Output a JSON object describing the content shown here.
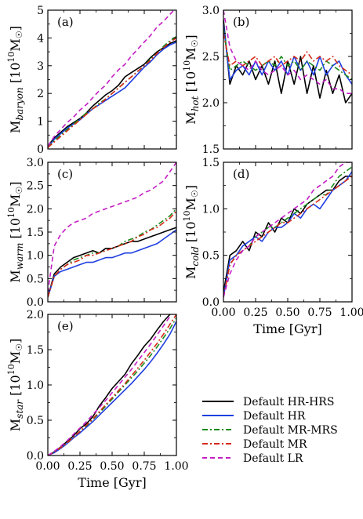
{
  "colors": {
    "Default HR-HRS": "#000000",
    "Default HR": "#1f3fe0",
    "Default MR-MRS": "#1a8a1a",
    "Default MR": "#d62a1a",
    "Default LR": "#c41fc4"
  },
  "legend": {
    "placement": "lower-right",
    "entries": [
      {
        "name": "Default HR-HRS",
        "dash": "solid"
      },
      {
        "name": "Default HR",
        "dash": "solid"
      },
      {
        "name": "Default MR-MRS",
        "dash": "dashdot"
      },
      {
        "name": "Default MR",
        "dash": "dashdot"
      },
      {
        "name": "Default LR",
        "dash": "dashed"
      }
    ]
  },
  "chart_data": [
    {
      "type": "line",
      "panel_label": "(a)",
      "ylabel_main": "M",
      "ylabel_sub": "baryon",
      "ylabel_unit": " [10",
      "ylabel_exp": "10",
      "ylabel_tail": "M",
      "ylabel_sun": "☉",
      "ylabel_close": "]",
      "xlabel": "",
      "xlim": [
        0,
        1
      ],
      "ylim": [
        0,
        5
      ],
      "xticks": [],
      "yticks": [
        "0",
        "1",
        "2",
        "3",
        "4",
        "5"
      ],
      "x": [
        0,
        0.05,
        0.1,
        0.15,
        0.2,
        0.25,
        0.3,
        0.35,
        0.4,
        0.45,
        0.5,
        0.55,
        0.6,
        0.65,
        0.7,
        0.75,
        0.8,
        0.85,
        0.9,
        0.95,
        1.0
      ],
      "series": [
        {
          "name": "Default HR-HRS",
          "values": [
            0.1,
            0.4,
            0.6,
            0.8,
            0.95,
            1.1,
            1.3,
            1.55,
            1.75,
            1.95,
            2.1,
            2.3,
            2.6,
            2.75,
            2.9,
            3.05,
            3.3,
            3.5,
            3.65,
            3.8,
            3.9
          ]
        },
        {
          "name": "Default HR",
          "values": [
            0.05,
            0.35,
            0.55,
            0.75,
            0.9,
            1.05,
            1.25,
            1.45,
            1.6,
            1.75,
            1.9,
            2.05,
            2.2,
            2.45,
            2.7,
            2.95,
            3.15,
            3.4,
            3.6,
            3.75,
            3.85
          ]
        },
        {
          "name": "Default MR-MRS",
          "values": [
            0.05,
            0.3,
            0.5,
            0.7,
            0.9,
            1.1,
            1.3,
            1.45,
            1.65,
            1.8,
            2.0,
            2.2,
            2.4,
            2.6,
            2.8,
            3.0,
            3.25,
            3.45,
            3.7,
            3.9,
            4.05
          ]
        },
        {
          "name": "Default MR",
          "values": [
            0.05,
            0.25,
            0.45,
            0.65,
            0.85,
            1.05,
            1.25,
            1.45,
            1.6,
            1.8,
            2.0,
            2.2,
            2.4,
            2.6,
            2.8,
            3.0,
            3.2,
            3.45,
            3.65,
            3.85,
            4.0
          ]
        },
        {
          "name": "Default LR",
          "values": [
            0.1,
            0.45,
            0.7,
            0.95,
            1.15,
            1.4,
            1.6,
            1.85,
            2.1,
            2.3,
            2.6,
            2.85,
            3.05,
            3.35,
            3.6,
            3.85,
            4.1,
            4.4,
            4.6,
            4.85,
            5.1
          ]
        }
      ]
    },
    {
      "type": "line",
      "panel_label": "(b)",
      "ylabel_main": "M",
      "ylabel_sub": "hot",
      "ylabel_unit": " [10",
      "ylabel_exp": "10",
      "ylabel_tail": "M",
      "ylabel_sun": "☉",
      "ylabel_close": "]",
      "xlabel": "",
      "xlim": [
        0,
        1
      ],
      "ylim": [
        1.5,
        3.0
      ],
      "xticks": [],
      "yticks": [
        "1.5",
        "2.0",
        "2.5",
        "3.0"
      ],
      "x": [
        0,
        0.05,
        0.1,
        0.15,
        0.2,
        0.25,
        0.3,
        0.35,
        0.4,
        0.45,
        0.5,
        0.55,
        0.6,
        0.65,
        0.7,
        0.75,
        0.8,
        0.85,
        0.9,
        0.95,
        1.0
      ],
      "series": [
        {
          "name": "Default HR-HRS",
          "values": [
            2.9,
            2.2,
            2.4,
            2.3,
            2.45,
            2.25,
            2.4,
            2.2,
            2.45,
            2.1,
            2.45,
            2.2,
            2.5,
            2.1,
            2.4,
            2.05,
            2.35,
            2.1,
            2.3,
            2.0,
            2.1
          ]
        },
        {
          "name": "Default HR",
          "values": [
            2.85,
            2.25,
            2.35,
            2.4,
            2.3,
            2.45,
            2.3,
            2.45,
            2.35,
            2.45,
            2.3,
            2.5,
            2.35,
            2.45,
            2.3,
            2.5,
            2.3,
            2.4,
            2.45,
            2.3,
            2.2
          ]
        },
        {
          "name": "Default MR-MRS",
          "values": [
            2.8,
            2.35,
            2.4,
            2.45,
            2.4,
            2.35,
            2.4,
            2.45,
            2.4,
            2.5,
            2.4,
            2.45,
            2.35,
            2.45,
            2.4,
            2.35,
            2.45,
            2.4,
            2.35,
            2.3,
            2.25
          ]
        },
        {
          "name": "Default MR",
          "values": [
            2.75,
            2.4,
            2.45,
            2.4,
            2.45,
            2.5,
            2.4,
            2.45,
            2.5,
            2.4,
            2.45,
            2.5,
            2.45,
            2.55,
            2.45,
            2.5,
            2.45,
            2.5,
            2.4,
            2.35,
            2.3
          ]
        },
        {
          "name": "Default LR",
          "values": [
            3.0,
            2.6,
            2.45,
            2.4,
            2.35,
            2.45,
            2.35,
            2.3,
            2.35,
            2.4,
            2.3,
            2.35,
            2.25,
            2.3,
            2.25,
            2.2,
            2.25,
            2.15,
            2.15,
            2.1,
            2.1
          ]
        }
      ]
    },
    {
      "type": "line",
      "panel_label": "(c)",
      "ylabel_main": "M",
      "ylabel_sub": "warm",
      "ylabel_unit": " [10",
      "ylabel_exp": "10",
      "ylabel_tail": "M",
      "ylabel_sun": "☉",
      "ylabel_close": "]",
      "xlabel": "",
      "xlim": [
        0,
        1
      ],
      "ylim": [
        0,
        3.0
      ],
      "xticks": [],
      "yticks": [
        "0.0",
        "0.5",
        "1.0",
        "1.5",
        "2.0",
        "2.5",
        "3.0"
      ],
      "x": [
        0,
        0.05,
        0.1,
        0.15,
        0.2,
        0.25,
        0.3,
        0.35,
        0.4,
        0.45,
        0.5,
        0.55,
        0.6,
        0.65,
        0.7,
        0.75,
        0.8,
        0.85,
        0.9,
        0.95,
        1.0
      ],
      "series": [
        {
          "name": "Default HR-HRS",
          "values": [
            0.1,
            0.6,
            0.75,
            0.85,
            0.95,
            1.0,
            1.05,
            1.1,
            1.05,
            1.15,
            1.15,
            1.2,
            1.25,
            1.3,
            1.3,
            1.35,
            1.4,
            1.45,
            1.5,
            1.55,
            1.6
          ]
        },
        {
          "name": "Default HR",
          "values": [
            0.1,
            0.55,
            0.65,
            0.7,
            0.75,
            0.8,
            0.85,
            0.85,
            0.9,
            0.95,
            0.95,
            1.0,
            1.05,
            1.05,
            1.1,
            1.15,
            1.2,
            1.25,
            1.35,
            1.45,
            1.55
          ]
        },
        {
          "name": "Default MR-MRS",
          "values": [
            0.1,
            0.55,
            0.7,
            0.8,
            0.9,
            0.95,
            1.0,
            1.05,
            1.05,
            1.1,
            1.15,
            1.2,
            1.3,
            1.35,
            1.4,
            1.5,
            1.55,
            1.65,
            1.75,
            1.85,
            2.0
          ]
        },
        {
          "name": "Default MR",
          "values": [
            0.1,
            0.55,
            0.7,
            0.8,
            0.85,
            0.9,
            1.0,
            1.0,
            1.05,
            1.1,
            1.15,
            1.2,
            1.25,
            1.3,
            1.4,
            1.45,
            1.55,
            1.6,
            1.7,
            1.8,
            1.95
          ]
        },
        {
          "name": "Default LR",
          "values": [
            0.2,
            1.2,
            1.45,
            1.6,
            1.7,
            1.75,
            1.8,
            1.9,
            1.95,
            2.0,
            2.05,
            2.1,
            2.15,
            2.2,
            2.25,
            2.35,
            2.4,
            2.5,
            2.6,
            2.8,
            3.0
          ]
        }
      ]
    },
    {
      "type": "line",
      "panel_label": "(d)",
      "ylabel_main": "M",
      "ylabel_sub": "cold",
      "ylabel_unit": " [10",
      "ylabel_exp": "10",
      "ylabel_tail": "M",
      "ylabel_sun": "☉",
      "ylabel_close": "]",
      "xlabel": "Time [Gyr]",
      "xlim": [
        0,
        1
      ],
      "ylim": [
        0,
        1.5
      ],
      "xticks": [
        "0.00",
        "0.25",
        "0.50",
        "0.75",
        "1.00"
      ],
      "yticks": [
        "0.0",
        "0.5",
        "1.0",
        "1.5"
      ],
      "x": [
        0,
        0.05,
        0.1,
        0.15,
        0.2,
        0.25,
        0.3,
        0.35,
        0.4,
        0.45,
        0.5,
        0.55,
        0.6,
        0.65,
        0.7,
        0.75,
        0.8,
        0.85,
        0.9,
        0.95,
        1.0
      ],
      "series": [
        {
          "name": "Default HR-HRS",
          "values": [
            0.1,
            0.5,
            0.55,
            0.65,
            0.55,
            0.75,
            0.7,
            0.85,
            0.75,
            0.9,
            0.85,
            1.0,
            0.95,
            1.05,
            1.1,
            1.15,
            1.2,
            1.2,
            1.3,
            1.35,
            1.35
          ]
        },
        {
          "name": "Default HR",
          "values": [
            0.05,
            0.45,
            0.5,
            0.6,
            0.65,
            0.7,
            0.65,
            0.75,
            0.8,
            0.8,
            0.85,
            0.95,
            0.9,
            1.0,
            1.05,
            1.0,
            1.1,
            1.2,
            1.25,
            1.3,
            1.4
          ]
        },
        {
          "name": "Default MR-MRS",
          "values": [
            0.05,
            0.4,
            0.5,
            0.55,
            0.6,
            0.7,
            0.75,
            0.8,
            0.8,
            0.85,
            0.9,
            0.95,
            1.0,
            1.05,
            1.1,
            1.15,
            1.15,
            1.25,
            1.35,
            1.4,
            1.45
          ]
        },
        {
          "name": "Default MR",
          "values": [
            0.05,
            0.4,
            0.5,
            0.55,
            0.6,
            0.65,
            0.7,
            0.75,
            0.8,
            0.85,
            0.85,
            0.9,
            0.95,
            1.0,
            1.05,
            1.1,
            1.15,
            1.2,
            1.25,
            1.3,
            1.35
          ]
        },
        {
          "name": "Default LR",
          "values": [
            0.05,
            0.3,
            0.45,
            0.55,
            0.6,
            0.7,
            0.75,
            0.8,
            0.85,
            0.9,
            0.95,
            1.0,
            1.05,
            1.1,
            1.2,
            1.25,
            1.3,
            1.35,
            1.45,
            1.5,
            1.5
          ]
        }
      ]
    },
    {
      "type": "line",
      "panel_label": "(e)",
      "ylabel_main": "M",
      "ylabel_sub": "star",
      "ylabel_unit": " [10",
      "ylabel_exp": "10",
      "ylabel_tail": "M",
      "ylabel_sun": "☉",
      "ylabel_close": "]",
      "xlabel": "Time [Gyr]",
      "xlim": [
        0,
        1
      ],
      "ylim": [
        0,
        2.0
      ],
      "xticks": [
        "0.00",
        "0.25",
        "0.50",
        "0.75",
        "1.00"
      ],
      "yticks": [
        "0.0",
        "0.5",
        "1.0",
        "1.5",
        "2.0"
      ],
      "x": [
        0,
        0.05,
        0.1,
        0.15,
        0.2,
        0.25,
        0.3,
        0.35,
        0.4,
        0.45,
        0.5,
        0.55,
        0.6,
        0.65,
        0.7,
        0.75,
        0.8,
        0.85,
        0.9,
        0.95,
        1.0
      ],
      "series": [
        {
          "name": "Default HR-HRS",
          "values": [
            0.0,
            0.05,
            0.12,
            0.2,
            0.28,
            0.38,
            0.45,
            0.55,
            0.7,
            0.82,
            0.95,
            1.05,
            1.15,
            1.3,
            1.42,
            1.55,
            1.65,
            1.78,
            1.9,
            2.0,
            2.1
          ]
        },
        {
          "name": "Default HR",
          "values": [
            0.0,
            0.04,
            0.1,
            0.17,
            0.25,
            0.32,
            0.4,
            0.48,
            0.57,
            0.66,
            0.75,
            0.84,
            0.93,
            1.02,
            1.12,
            1.22,
            1.33,
            1.45,
            1.58,
            1.72,
            1.9
          ]
        },
        {
          "name": "Default MR-MRS",
          "values": [
            0.0,
            0.05,
            0.11,
            0.18,
            0.26,
            0.34,
            0.42,
            0.51,
            0.6,
            0.7,
            0.8,
            0.9,
            1.0,
            1.1,
            1.2,
            1.31,
            1.42,
            1.54,
            1.67,
            1.8,
            1.95
          ]
        },
        {
          "name": "Default MR",
          "values": [
            0.0,
            0.05,
            0.11,
            0.18,
            0.26,
            0.34,
            0.43,
            0.52,
            0.62,
            0.72,
            0.82,
            0.92,
            1.02,
            1.13,
            1.24,
            1.35,
            1.47,
            1.59,
            1.72,
            1.86,
            2.0
          ]
        },
        {
          "name": "Default LR",
          "values": [
            0.0,
            0.06,
            0.13,
            0.21,
            0.3,
            0.39,
            0.48,
            0.58,
            0.68,
            0.78,
            0.89,
            1.0,
            1.11,
            1.22,
            1.34,
            1.46,
            1.58,
            1.71,
            1.84,
            1.97,
            2.1
          ]
        }
      ]
    }
  ]
}
